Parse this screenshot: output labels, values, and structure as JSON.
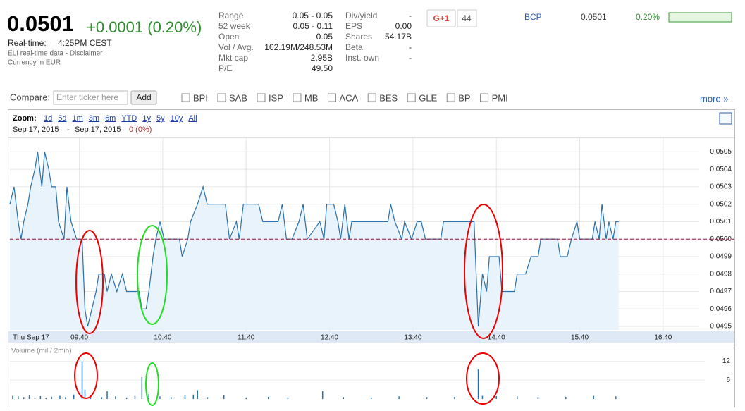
{
  "header": {
    "price": "0.0501",
    "change": "+0.0001 (0.20%)",
    "realtime_label": "Real-time:",
    "realtime_time": "4:25PM CEST",
    "source": "ELI real-time data - Disclaimer",
    "currency": "Currency in EUR"
  },
  "stats": {
    "left": [
      [
        "Range",
        "0.05 - 0.05"
      ],
      [
        "52 week",
        "0.05 - 0.11"
      ],
      [
        "Open",
        "0.05"
      ],
      [
        "Vol / Avg.",
        "102.19M/248.53M"
      ],
      [
        "Mkt cap",
        "2.95B"
      ],
      [
        "P/E",
        "49.50"
      ]
    ],
    "right": [
      [
        "Div/yield",
        "-"
      ],
      [
        "EPS",
        "0.00"
      ],
      [
        "Shares",
        "54.17B"
      ],
      [
        "Beta",
        "-"
      ],
      [
        "Inst. own",
        "-"
      ]
    ]
  },
  "social": {
    "button": "G+1",
    "count": "44"
  },
  "ticker": {
    "symbol": "BCP",
    "price": "0.0501",
    "change": "0.20%"
  },
  "compare": {
    "label": "Compare:",
    "placeholder": "Enter ticker here",
    "button": "Add",
    "tickers": [
      "BPI",
      "SAB",
      "ISP",
      "MB",
      "ACA",
      "BES",
      "GLE",
      "BP",
      "PMI"
    ],
    "more": "more »"
  },
  "zoom": {
    "label": "Zoom:",
    "options": [
      "1d",
      "5d",
      "1m",
      "3m",
      "6m",
      "YTD",
      "1y",
      "5y",
      "10y",
      "All"
    ],
    "from": "Sep 17, 2015",
    "separator": "-",
    "to": "Sep 17, 2015",
    "change": "0 (0%)"
  },
  "chart_data": [
    {
      "type": "line",
      "date_label": "Thu Sep 17",
      "color": "#2a6fa8",
      "reference_line": 0.05,
      "x": [
        "08:50",
        "08:53",
        "08:56",
        "08:58",
        "09:00",
        "09:03",
        "09:05",
        "09:08",
        "09:10",
        "09:13",
        "09:15",
        "09:18",
        "09:20",
        "09:23",
        "09:25",
        "09:29",
        "09:31",
        "09:34",
        "09:38",
        "09:42",
        "09:44",
        "09:46",
        "09:49",
        "09:52",
        "09:54",
        "09:58",
        "10:00",
        "10:03",
        "10:07",
        "10:11",
        "10:14",
        "10:23",
        "10:25",
        "10:28",
        "10:30",
        "10:33",
        "10:35",
        "10:38",
        "10:41",
        "10:52",
        "10:54",
        "10:58",
        "11:00",
        "11:05",
        "11:09",
        "11:12",
        "11:25",
        "11:28",
        "11:33",
        "11:35",
        "11:38",
        "11:49",
        "11:52",
        "12:03",
        "12:06",
        "12:09",
        "12:13",
        "12:18",
        "12:21",
        "12:24",
        "12:33",
        "12:36",
        "12:38",
        "12:43",
        "12:46",
        "12:48",
        "12:51",
        "12:54",
        "12:56",
        "13:22",
        "13:24",
        "13:27",
        "13:32",
        "13:34",
        "13:39",
        "13:43",
        "13:46",
        "13:49",
        "14:00",
        "14:02",
        "14:24",
        "14:27",
        "14:30",
        "14:33",
        "14:35",
        "14:42",
        "14:44",
        "14:53",
        "14:55",
        "15:01",
        "15:05",
        "15:10",
        "15:12",
        "15:24",
        "15:26",
        "15:31",
        "15:34",
        "15:38",
        "15:40",
        "15:49",
        "15:51",
        "15:54",
        "15:56",
        "15:59",
        "16:01",
        "16:04",
        "16:06",
        "16:08"
      ],
      "series": [
        {
          "values": [
            0.0502,
            0.0503,
            0.0501,
            0.05,
            0.0501,
            0.0502,
            0.0503,
            0.0504,
            0.0505,
            0.0503,
            0.0505,
            0.0504,
            0.0503,
            0.0503,
            0.0501,
            0.05,
            0.0503,
            0.0501,
            0.05,
            0.05,
            0.0496,
            0.0495,
            0.0496,
            0.0497,
            0.0498,
            0.0498,
            0.0497,
            0.0498,
            0.0497,
            0.0498,
            0.0497,
            0.0497,
            0.0496,
            0.0496,
            0.0497,
            0.0499,
            0.05,
            0.0501,
            0.05,
            0.05,
            0.0499,
            0.05,
            0.0501,
            0.0502,
            0.0503,
            0.0502,
            0.0502,
            0.05,
            0.0501,
            0.05,
            0.0502,
            0.0502,
            0.0501,
            0.0501,
            0.0502,
            0.05,
            0.05,
            0.0501,
            0.0502,
            0.05,
            0.0501,
            0.05,
            0.0502,
            0.0502,
            0.0501,
            0.05,
            0.0502,
            0.05,
            0.0501,
            0.0501,
            0.0502,
            0.0501,
            0.05,
            0.0501,
            0.05,
            0.0501,
            0.0501,
            0.05,
            0.05,
            0.0501,
            0.0501,
            0.0495,
            0.0498,
            0.0497,
            0.0499,
            0.0499,
            0.0497,
            0.0497,
            0.0498,
            0.0498,
            0.0499,
            0.0499,
            0.05,
            0.05,
            0.0499,
            0.0499,
            0.05,
            0.0501,
            0.05,
            0.05,
            0.0501,
            0.05,
            0.0502,
            0.05,
            0.0501,
            0.05,
            0.0501,
            0.0501
          ]
        }
      ],
      "xlim": [
        "08:50",
        "17:10"
      ],
      "xticks": [
        "09:40",
        "10:40",
        "11:40",
        "12:40",
        "13:40",
        "14:40",
        "15:40",
        "16:40"
      ],
      "ylim": [
        0.04948,
        0.05057
      ],
      "yticks": [
        0.0495,
        0.0496,
        0.0497,
        0.0498,
        0.0499,
        {
          "value": 0.05,
          "label": "0.0500"
        },
        0.0501,
        0.0502,
        0.0503,
        0.0504,
        0.0505
      ]
    },
    {
      "type": "bar",
      "title": "Volume (mil / 2min)",
      "color": "#2a6fa8",
      "x": [
        "08:52",
        "08:56",
        "09:00",
        "09:04",
        "09:08",
        "09:12",
        "09:16",
        "09:20",
        "09:26",
        "09:30",
        "09:36",
        "09:42",
        "09:44",
        "09:48",
        "09:56",
        "10:00",
        "10:06",
        "10:14",
        "10:20",
        "10:25",
        "10:30",
        "10:38",
        "10:46",
        "10:56",
        "11:02",
        "11:05",
        "11:12",
        "11:24",
        "11:40",
        "11:56",
        "12:10",
        "12:35",
        "12:50",
        "13:10",
        "13:30",
        "13:50",
        "14:10",
        "14:27",
        "14:30",
        "14:40",
        "14:55",
        "15:10",
        "15:30",
        "15:50",
        "16:06"
      ],
      "values": [
        1,
        0.8,
        0.6,
        1.2,
        0.5,
        0.9,
        0.4,
        0.7,
        1,
        0.6,
        1.4,
        12,
        3,
        1.3,
        0.6,
        2.5,
        0.8,
        0.5,
        1,
        7,
        1.5,
        0.8,
        0.6,
        1.2,
        1.4,
        2.8,
        0.6,
        1.2,
        0.5,
        0.7,
        0.5,
        2.5,
        0.6,
        0.5,
        0.8,
        0.6,
        0.7,
        9.5,
        1,
        0.9,
        0.8,
        0.6,
        0.7,
        1,
        0.8
      ],
      "xlim": [
        "08:50",
        "17:10"
      ],
      "ylim": [
        0,
        13
      ],
      "yticks": [
        6,
        12
      ]
    }
  ]
}
